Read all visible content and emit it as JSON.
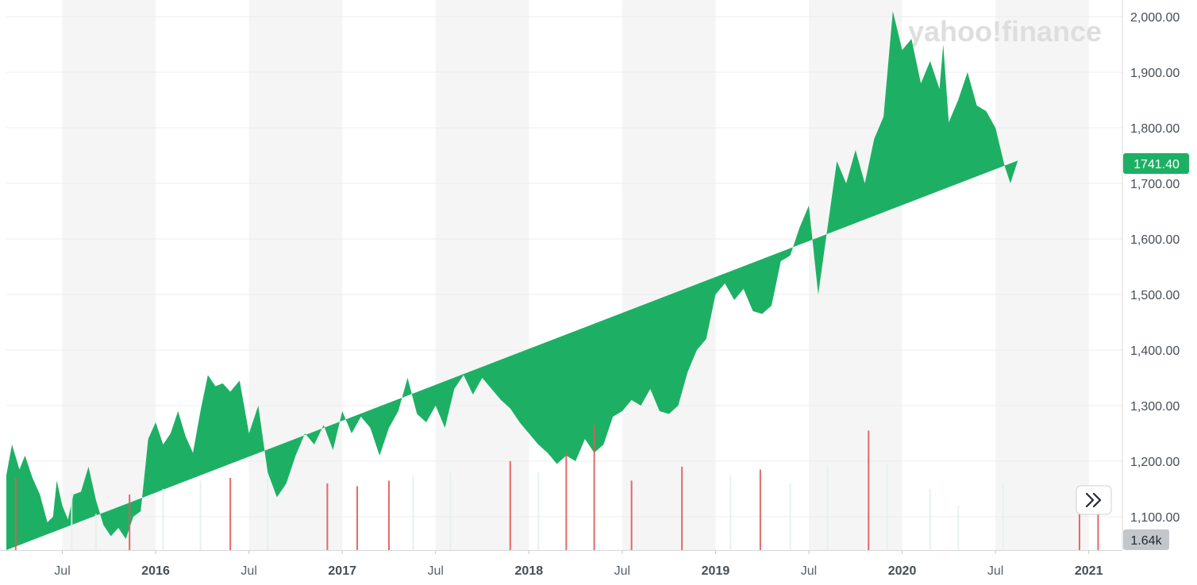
{
  "watermark": "yahoo!finance",
  "price_badge": {
    "value": "1741.40",
    "color": "#1db064"
  },
  "volume_badge": {
    "value": "1.64k",
    "color": "#c3c6ca"
  },
  "nav_button": {
    "icon": "double-chevron-right-icon"
  },
  "colors": {
    "area": "#1db064",
    "band": "#f5f5f5",
    "vol_up": "#e0f2e8",
    "vol_down": "#e05a5a",
    "grid": "#ececec"
  },
  "chart_data": {
    "type": "area",
    "title": "",
    "xlabel": "",
    "ylabel": "",
    "ylim": [
      1040,
      2030
    ],
    "y_ticks": [
      "2,000.00",
      "1,900.00",
      "1,800.00",
      "1,700.00",
      "1,600.00",
      "1,500.00",
      "1,400.00",
      "1,300.00",
      "1,200.00",
      "1,100.00"
    ],
    "y_tick_values": [
      2000,
      1900,
      1800,
      1700,
      1600,
      1500,
      1400,
      1300,
      1200,
      1100
    ],
    "x_ticks": [
      {
        "label": "Jul",
        "t": 2015.5,
        "year": false
      },
      {
        "label": "2016",
        "t": 2016.0,
        "year": true
      },
      {
        "label": "Jul",
        "t": 2016.5,
        "year": false
      },
      {
        "label": "2017",
        "t": 2017.0,
        "year": true
      },
      {
        "label": "Jul",
        "t": 2017.5,
        "year": false
      },
      {
        "label": "2018",
        "t": 2018.0,
        "year": true
      },
      {
        "label": "Jul",
        "t": 2018.5,
        "year": false
      },
      {
        "label": "2019",
        "t": 2019.0,
        "year": true
      },
      {
        "label": "Jul",
        "t": 2019.5,
        "year": false
      },
      {
        "label": "2020",
        "t": 2020.0,
        "year": true
      },
      {
        "label": "Jul",
        "t": 2020.5,
        "year": false
      },
      {
        "label": "2021",
        "t": 2021.0,
        "year": true
      }
    ],
    "x_range": [
      2015.2,
      2021.18
    ],
    "grid": true,
    "series": [
      {
        "t": [
          2015.2,
          2015.23,
          2015.27,
          2015.3,
          2015.34,
          2015.38,
          2015.42,
          2015.45,
          2015.47,
          2015.5,
          2015.53,
          2015.56,
          2015.6,
          2015.64,
          2015.68,
          2015.72,
          2015.76,
          2015.8,
          2015.84,
          2015.88,
          2015.92,
          2015.96,
          2016.0,
          2016.04,
          2016.08,
          2016.12,
          2016.16,
          2016.2,
          2016.24,
          2016.28,
          2016.32,
          2016.36,
          2016.4,
          2016.45,
          2016.5,
          2016.55,
          2016.6,
          2016.65,
          2016.7,
          2016.75,
          2016.8,
          2016.85,
          2016.9,
          2016.95,
          2017.0,
          2017.05,
          2017.1,
          2017.15,
          2017.2,
          2017.25,
          2017.3,
          2017.35,
          2017.4,
          2017.45,
          2017.5,
          2017.55,
          2017.6,
          2017.65,
          2017.7,
          2017.75,
          2017.8,
          2017.85,
          2017.9,
          2017.95,
          2018.0,
          2018.05,
          2018.1,
          2018.15,
          2018.2,
          2018.25,
          2018.3,
          2018.35,
          2018.4,
          2018.45,
          2018.5,
          2018.55,
          2018.6,
          2018.65,
          2018.7,
          2018.75,
          2018.8,
          2018.85,
          2018.9,
          2018.95,
          2019.0,
          2019.05,
          2019.1,
          2019.15,
          2019.2,
          2019.25,
          2019.3,
          2019.35,
          2019.4,
          2019.45,
          2019.5,
          2019.55,
          2019.6,
          2019.65,
          2019.7,
          2019.75,
          2019.8,
          2019.85,
          2019.9,
          2019.95,
          2020.0,
          2020.05,
          2020.1,
          2020.15,
          2020.2,
          2020.22,
          2020.25,
          2020.3,
          2020.35,
          2020.4,
          2020.45,
          2020.5,
          2020.55,
          2020.58,
          2020.62,
          2020.66,
          2020.7,
          2020.75,
          2020.8,
          2020.85,
          2020.9,
          2020.95,
          2021.0,
          2021.03,
          2021.06,
          2021.09,
          2021.12,
          2021.15,
          2021.18
        ],
        "v": [
          1175,
          1230,
          1185,
          1210,
          1170,
          1140,
          1090,
          1100,
          1165,
          1120,
          1095,
          1140,
          1145,
          1190,
          1130,
          1085,
          1065,
          1080,
          1060,
          1100,
          1110,
          1240,
          1270,
          1230,
          1250,
          1290,
          1245,
          1215,
          1290,
          1355,
          1335,
          1340,
          1325,
          1345,
          1250,
          1300,
          1180,
          1135,
          1160,
          1210,
          1250,
          1230,
          1265,
          1220,
          1290,
          1250,
          1280,
          1260,
          1210,
          1260,
          1290,
          1350,
          1285,
          1270,
          1300,
          1260,
          1330,
          1355,
          1320,
          1350,
          1330,
          1310,
          1295,
          1270,
          1250,
          1230,
          1215,
          1195,
          1210,
          1200,
          1240,
          1215,
          1230,
          1280,
          1290,
          1310,
          1300,
          1330,
          1290,
          1285,
          1300,
          1360,
          1400,
          1420,
          1500,
          1520,
          1490,
          1510,
          1470,
          1465,
          1480,
          1560,
          1570,
          1620,
          1660,
          1500,
          1620,
          1740,
          1700,
          1760,
          1700,
          1780,
          1820,
          2010,
          1940,
          1960,
          1880,
          1920,
          1870,
          1950,
          1810,
          1850,
          1900,
          1840,
          1830,
          1800,
          1730,
          1700,
          1741
        ]
      }
    ],
    "volume": [
      {
        "t": 2015.25,
        "v": 1170,
        "dir": "down"
      },
      {
        "t": 2015.55,
        "v": 1145,
        "dir": "up"
      },
      {
        "t": 2015.68,
        "v": 1105,
        "dir": "up"
      },
      {
        "t": 2015.86,
        "v": 1140,
        "dir": "down"
      },
      {
        "t": 2016.04,
        "v": 1150,
        "dir": "up"
      },
      {
        "t": 2016.24,
        "v": 1165,
        "dir": "up"
      },
      {
        "t": 2016.4,
        "v": 1170,
        "dir": "down"
      },
      {
        "t": 2016.6,
        "v": 1175,
        "dir": "up"
      },
      {
        "t": 2016.92,
        "v": 1160,
        "dir": "down"
      },
      {
        "t": 2017.08,
        "v": 1155,
        "dir": "down"
      },
      {
        "t": 2017.25,
        "v": 1165,
        "dir": "down"
      },
      {
        "t": 2017.38,
        "v": 1175,
        "dir": "up"
      },
      {
        "t": 2017.58,
        "v": 1180,
        "dir": "up"
      },
      {
        "t": 2017.9,
        "v": 1200,
        "dir": "down"
      },
      {
        "t": 2018.05,
        "v": 1180,
        "dir": "up"
      },
      {
        "t": 2018.2,
        "v": 1215,
        "dir": "down"
      },
      {
        "t": 2018.35,
        "v": 1265,
        "dir": "down"
      },
      {
        "t": 2018.55,
        "v": 1165,
        "dir": "down"
      },
      {
        "t": 2018.82,
        "v": 1190,
        "dir": "down"
      },
      {
        "t": 2019.08,
        "v": 1175,
        "dir": "up"
      },
      {
        "t": 2019.24,
        "v": 1185,
        "dir": "down"
      },
      {
        "t": 2019.4,
        "v": 1160,
        "dir": "up"
      },
      {
        "t": 2019.6,
        "v": 1190,
        "dir": "up"
      },
      {
        "t": 2019.82,
        "v": 1255,
        "dir": "down"
      },
      {
        "t": 2019.92,
        "v": 1195,
        "dir": "up"
      },
      {
        "t": 2020.15,
        "v": 1150,
        "dir": "up"
      },
      {
        "t": 2020.3,
        "v": 1120,
        "dir": "up"
      },
      {
        "t": 2020.54,
        "v": 1160,
        "dir": "up"
      },
      {
        "t": 2020.95,
        "v": 1140,
        "dir": "down"
      },
      {
        "t": 2021.05,
        "v": 1105,
        "dir": "down"
      }
    ]
  }
}
